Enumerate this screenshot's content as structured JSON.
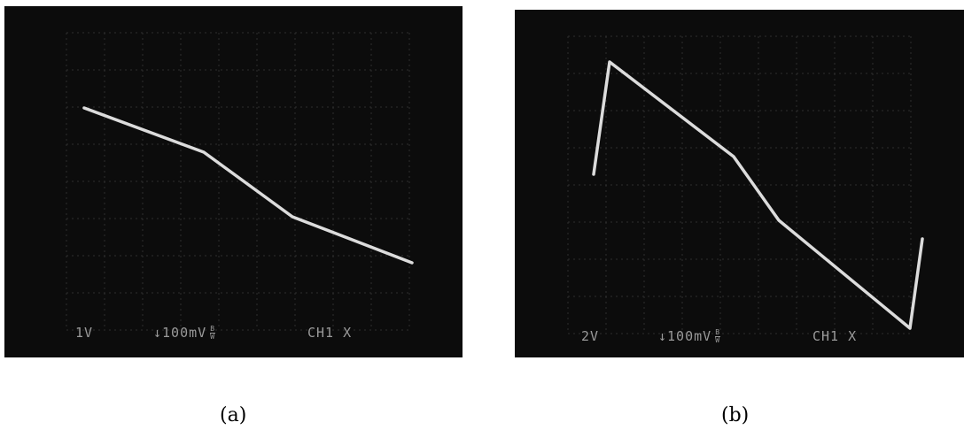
{
  "panels": [
    {
      "caption": "(a)",
      "volts_per_div": "1V",
      "offset": "↓100mV",
      "bw_top": "B",
      "bw_bottom": "W",
      "channel": "CH1 X",
      "trace_points": [
        [
          90,
          115
        ],
        [
          225,
          165
        ],
        [
          325,
          238
        ],
        [
          460,
          290
        ]
      ]
    },
    {
      "caption": "(b)",
      "volts_per_div": "2V",
      "offset": "↓100mV",
      "bw_top": "B",
      "bw_bottom": "W",
      "channel": "CH1 X",
      "trace_points": [
        [
          89,
          186
        ],
        [
          107,
          59
        ],
        [
          247,
          166
        ],
        [
          298,
          238
        ],
        [
          446,
          360
        ],
        [
          460,
          259
        ]
      ]
    }
  ],
  "colors": {
    "screen": "#0c0c0c",
    "grid": "#2e2e2e",
    "trace": "#dcdcdc",
    "readout": "#9a9a9a"
  }
}
